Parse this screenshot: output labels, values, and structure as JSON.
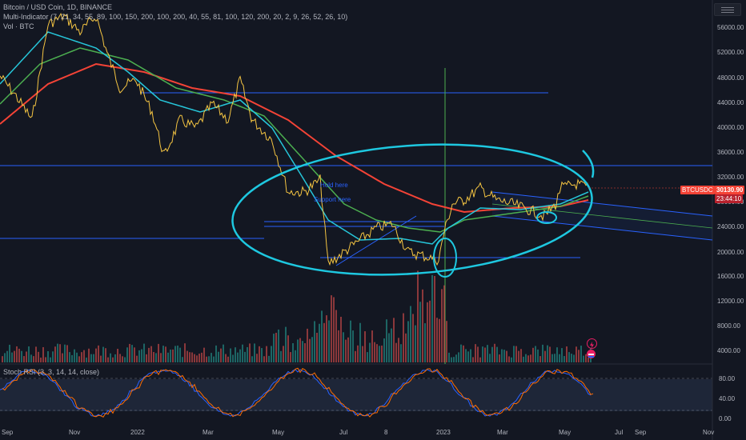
{
  "legend": {
    "symbol": "Bitcoin / USD Coin, 1D, BINANCE",
    "indicator": "Multi-Indicator (7, 21, 34, 55, 89, 100, 150, 200, 100, 200, 40, 55, 81, 100, 120, 200, 20, 2, 9, 26, 52, 26, 10)",
    "volume": "Vol · BTC",
    "stoch": "Stoch RSI (3, 3, 14, 14, close)"
  },
  "price_axis": [
    "56000.00",
    "52000.00",
    "48000.00",
    "44000.00",
    "40000.00",
    "36000.00",
    "32000.00",
    "28000.00",
    "24000.00",
    "20000.00",
    "16000.00",
    "12000.00",
    "8000.00",
    "4000.00"
  ],
  "stoch_axis": [
    "80.00",
    "40.00",
    "0.00"
  ],
  "time_axis": [
    "Sep",
    "Nov",
    "2022",
    "Mar",
    "May",
    "Jul",
    "8",
    "2023",
    "Mar",
    "May",
    "Jul",
    "Sep",
    "Nov"
  ],
  "ticker": {
    "symbol": "BTCUSDC",
    "price": "30130.90",
    "countdown": "23:44:10"
  },
  "annotations": [
    "Hold here",
    "Support here"
  ],
  "colors": {
    "background": "#131722",
    "ma_red": "#f44336",
    "ma_green": "#4caf50",
    "ma_cyan": "#26c6da",
    "price": "#f5c542",
    "hline": "#2962ff",
    "marker": "#1ec8e0",
    "stoch_k": "#2962ff",
    "stoch_d": "#ff6d00"
  },
  "icons": [
    "menu-icon",
    "lightning-icon",
    "flag-icon"
  ]
}
